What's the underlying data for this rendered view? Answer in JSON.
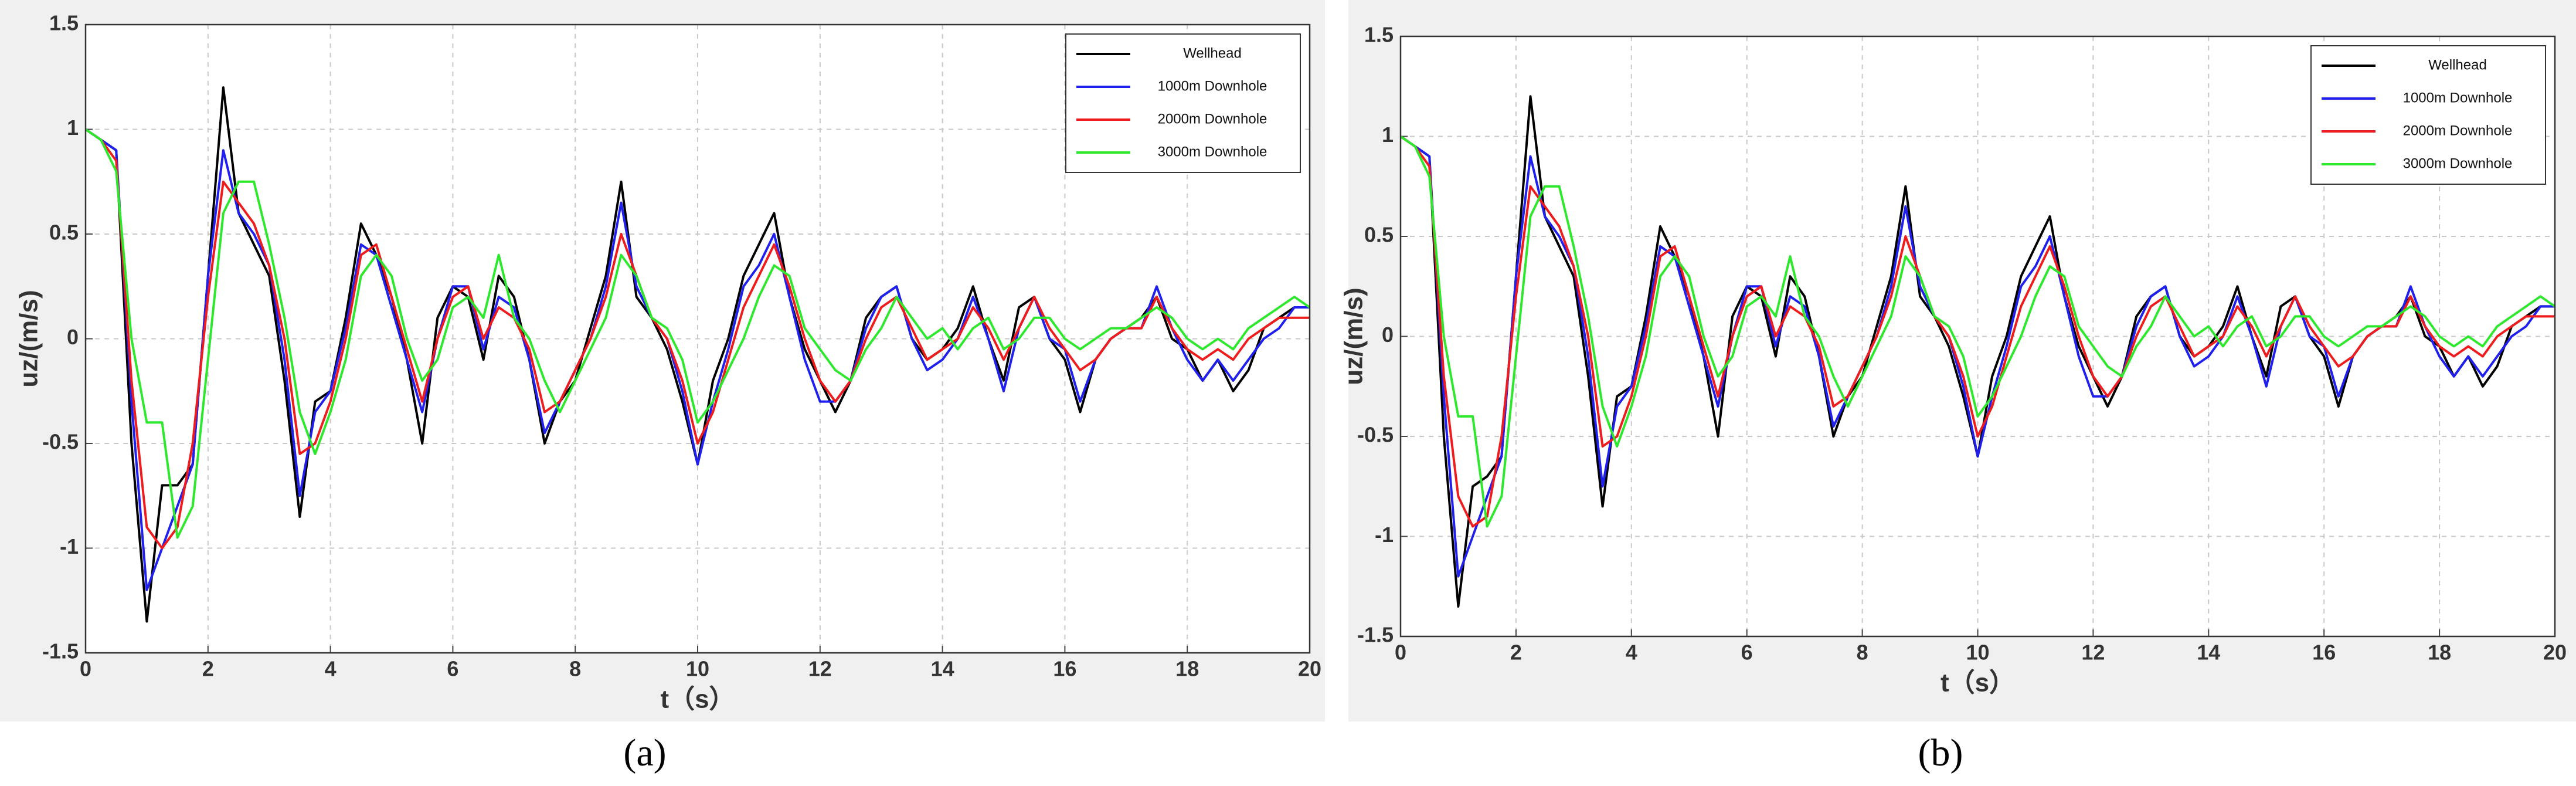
{
  "chart_data": [
    {
      "type": "line",
      "caption": "(a)",
      "xlabel": "t（s）",
      "ylabel": "uz/(m/s)",
      "xlim": [
        0,
        20
      ],
      "xticks": [
        0,
        2,
        4,
        6,
        8,
        10,
        12,
        14,
        16,
        18,
        20
      ],
      "ylim": [
        -1.5,
        1.5
      ],
      "yticks": [
        -1.5,
        -1,
        -0.5,
        0,
        0.5,
        1,
        1.5
      ],
      "grid": true,
      "legend": "upper right",
      "x": [
        0,
        0.25,
        0.5,
        0.75,
        1,
        1.25,
        1.5,
        1.75,
        2,
        2.25,
        2.5,
        2.75,
        3,
        3.25,
        3.5,
        3.75,
        4,
        4.25,
        4.5,
        4.75,
        5,
        5.25,
        5.5,
        5.75,
        6,
        6.25,
        6.5,
        6.75,
        7,
        7.25,
        7.5,
        7.75,
        8,
        8.25,
        8.5,
        8.75,
        9,
        9.25,
        9.5,
        9.75,
        10,
        10.25,
        10.5,
        10.75,
        11,
        11.25,
        11.5,
        11.75,
        12,
        12.25,
        12.5,
        12.75,
        13,
        13.25,
        13.5,
        13.75,
        14,
        14.25,
        14.5,
        14.75,
        15,
        15.25,
        15.5,
        15.75,
        16,
        16.25,
        16.5,
        16.75,
        17,
        17.25,
        17.5,
        17.75,
        18,
        18.25,
        18.5,
        18.75,
        19,
        19.25,
        19.5,
        19.75,
        20
      ],
      "series": [
        {
          "name": "Wellhead",
          "color": "#000000",
          "values": [
            1,
            0.95,
            0.9,
            -0.5,
            -1.35,
            -0.7,
            -0.7,
            -0.6,
            0.3,
            1.2,
            0.6,
            0.45,
            0.3,
            -0.2,
            -0.85,
            -0.3,
            -0.25,
            0.1,
            0.55,
            0.4,
            0.2,
            -0.1,
            -0.5,
            0.1,
            0.25,
            0.2,
            -0.1,
            0.3,
            0.2,
            -0.1,
            -0.5,
            -0.3,
            -0.2,
            0.05,
            0.3,
            0.75,
            0.2,
            0.1,
            -0.05,
            -0.3,
            -0.6,
            -0.2,
            0.0,
            0.3,
            0.45,
            0.6,
            0.2,
            -0.05,
            -0.2,
            -0.35,
            -0.2,
            0.1,
            0.2,
            0.25,
            0.0,
            -0.1,
            -0.05,
            0.05,
            0.25,
            0.0,
            -0.2,
            0.15,
            0.2,
            0.0,
            -0.1,
            -0.35,
            -0.1,
            0.0,
            0.05,
            0.1,
            0.2,
            0.0,
            -0.05,
            -0.2,
            -0.1,
            -0.25,
            -0.15,
            0.05,
            0.1,
            0.15,
            0.15
          ]
        },
        {
          "name": "1000m Downhole",
          "color": "#2020ee",
          "values": [
            1,
            0.95,
            0.9,
            -0.3,
            -1.2,
            -1.0,
            -0.8,
            -0.6,
            0.3,
            0.9,
            0.6,
            0.5,
            0.35,
            -0.1,
            -0.75,
            -0.35,
            -0.25,
            0.05,
            0.45,
            0.4,
            0.15,
            -0.1,
            -0.35,
            0.0,
            0.25,
            0.25,
            -0.05,
            0.2,
            0.15,
            -0.1,
            -0.45,
            -0.3,
            -0.15,
            0.0,
            0.25,
            0.65,
            0.25,
            0.1,
            0.0,
            -0.25,
            -0.6,
            -0.3,
            -0.05,
            0.25,
            0.35,
            0.5,
            0.2,
            -0.1,
            -0.3,
            -0.3,
            -0.2,
            0.05,
            0.2,
            0.25,
            0.0,
            -0.15,
            -0.1,
            0.0,
            0.2,
            0.0,
            -0.25,
            0.05,
            0.2,
            0.0,
            -0.05,
            -0.3,
            -0.1,
            0.0,
            0.05,
            0.05,
            0.25,
            0.05,
            -0.1,
            -0.2,
            -0.1,
            -0.2,
            -0.1,
            0.0,
            0.05,
            0.15,
            0.15
          ]
        },
        {
          "name": "2000m Downhole",
          "color": "#ee1c1c",
          "values": [
            1,
            0.95,
            0.85,
            -0.2,
            -0.9,
            -1.0,
            -0.9,
            -0.5,
            0.2,
            0.75,
            0.65,
            0.55,
            0.35,
            0.0,
            -0.55,
            -0.5,
            -0.3,
            0.0,
            0.4,
            0.45,
            0.2,
            -0.05,
            -0.3,
            0.0,
            0.2,
            0.25,
            0.0,
            0.15,
            0.1,
            -0.05,
            -0.35,
            -0.3,
            -0.15,
            0.0,
            0.2,
            0.5,
            0.3,
            0.1,
            0.0,
            -0.2,
            -0.5,
            -0.35,
            -0.1,
            0.15,
            0.3,
            0.45,
            0.25,
            0.0,
            -0.2,
            -0.3,
            -0.2,
            0.0,
            0.15,
            0.2,
            0.05,
            -0.1,
            -0.05,
            0.0,
            0.15,
            0.05,
            -0.1,
            0.05,
            0.2,
            0.05,
            -0.05,
            -0.15,
            -0.1,
            0.0,
            0.05,
            0.05,
            0.2,
            0.05,
            -0.05,
            -0.1,
            -0.05,
            -0.1,
            0.0,
            0.05,
            0.1,
            0.1,
            0.1
          ]
        },
        {
          "name": "3000m Downhole",
          "color": "#2ee82e",
          "values": [
            1,
            0.95,
            0.8,
            0.0,
            -0.4,
            -0.4,
            -0.95,
            -0.8,
            -0.1,
            0.6,
            0.75,
            0.75,
            0.45,
            0.1,
            -0.35,
            -0.55,
            -0.35,
            -0.1,
            0.3,
            0.4,
            0.3,
            0.0,
            -0.2,
            -0.1,
            0.15,
            0.2,
            0.1,
            0.4,
            0.1,
            0.0,
            -0.2,
            -0.35,
            -0.2,
            -0.05,
            0.1,
            0.4,
            0.3,
            0.1,
            0.05,
            -0.1,
            -0.4,
            -0.3,
            -0.15,
            0.0,
            0.2,
            0.35,
            0.3,
            0.05,
            -0.05,
            -0.15,
            -0.2,
            -0.05,
            0.05,
            0.2,
            0.1,
            0.0,
            0.05,
            -0.05,
            0.05,
            0.1,
            -0.05,
            0.0,
            0.1,
            0.1,
            0.0,
            -0.05,
            0.0,
            0.05,
            0.05,
            0.1,
            0.15,
            0.1,
            0.0,
            -0.05,
            0.0,
            -0.05,
            0.05,
            0.1,
            0.15,
            0.2,
            0.15
          ]
        }
      ]
    },
    {
      "type": "line",
      "caption": "(b)",
      "xlabel": "t（s）",
      "ylabel": "uz/(m/s)",
      "xlim": [
        0,
        20
      ],
      "xticks": [
        0,
        2,
        4,
        6,
        8,
        10,
        12,
        14,
        16,
        18,
        20
      ],
      "ylim": [
        -1.5,
        1.5
      ],
      "yticks": [
        -1.5,
        -1,
        -0.5,
        0,
        0.5,
        1,
        1.5
      ],
      "grid": true,
      "legend": "upper right",
      "x": [
        0,
        0.25,
        0.5,
        0.75,
        1,
        1.25,
        1.5,
        1.75,
        2,
        2.25,
        2.5,
        2.75,
        3,
        3.25,
        3.5,
        3.75,
        4,
        4.25,
        4.5,
        4.75,
        5,
        5.25,
        5.5,
        5.75,
        6,
        6.25,
        6.5,
        6.75,
        7,
        7.25,
        7.5,
        7.75,
        8,
        8.25,
        8.5,
        8.75,
        9,
        9.25,
        9.5,
        9.75,
        10,
        10.25,
        10.5,
        10.75,
        11,
        11.25,
        11.5,
        11.75,
        12,
        12.25,
        12.5,
        12.75,
        13,
        13.25,
        13.5,
        13.75,
        14,
        14.25,
        14.5,
        14.75,
        15,
        15.25,
        15.5,
        15.75,
        16,
        16.25,
        16.5,
        16.75,
        17,
        17.25,
        17.5,
        17.75,
        18,
        18.25,
        18.5,
        18.75,
        19,
        19.25,
        19.5,
        19.75,
        20
      ],
      "series": [
        {
          "name": "Wellhead",
          "color": "#000000",
          "values": [
            1,
            0.95,
            0.9,
            -0.5,
            -1.35,
            -0.75,
            -0.7,
            -0.6,
            0.3,
            1.2,
            0.6,
            0.45,
            0.3,
            -0.2,
            -0.85,
            -0.3,
            -0.25,
            0.1,
            0.55,
            0.4,
            0.2,
            -0.1,
            -0.5,
            0.1,
            0.25,
            0.2,
            -0.1,
            0.3,
            0.2,
            -0.1,
            -0.5,
            -0.3,
            -0.2,
            0.05,
            0.3,
            0.75,
            0.2,
            0.1,
            -0.05,
            -0.3,
            -0.6,
            -0.2,
            0.0,
            0.3,
            0.45,
            0.6,
            0.2,
            -0.05,
            -0.2,
            -0.35,
            -0.2,
            0.1,
            0.2,
            0.25,
            0.0,
            -0.1,
            -0.05,
            0.05,
            0.25,
            0.0,
            -0.2,
            0.15,
            0.2,
            0.0,
            -0.1,
            -0.35,
            -0.1,
            0.0,
            0.05,
            0.1,
            0.2,
            0.0,
            -0.05,
            -0.2,
            -0.1,
            -0.25,
            -0.15,
            0.05,
            0.1,
            0.15,
            0.15
          ]
        },
        {
          "name": "1000m Downhole",
          "color": "#2020ee",
          "values": [
            1,
            0.95,
            0.9,
            -0.3,
            -1.2,
            -1.0,
            -0.8,
            -0.6,
            0.3,
            0.9,
            0.6,
            0.5,
            0.35,
            -0.1,
            -0.75,
            -0.35,
            -0.25,
            0.05,
            0.45,
            0.4,
            0.15,
            -0.1,
            -0.35,
            0.0,
            0.25,
            0.25,
            -0.05,
            0.2,
            0.15,
            -0.1,
            -0.45,
            -0.3,
            -0.15,
            0.0,
            0.25,
            0.65,
            0.25,
            0.1,
            0.0,
            -0.25,
            -0.6,
            -0.3,
            -0.05,
            0.25,
            0.35,
            0.5,
            0.2,
            -0.1,
            -0.3,
            -0.3,
            -0.2,
            0.05,
            0.2,
            0.25,
            0.0,
            -0.15,
            -0.1,
            0.0,
            0.2,
            0.0,
            -0.25,
            0.05,
            0.2,
            0.0,
            -0.05,
            -0.3,
            -0.1,
            0.0,
            0.05,
            0.05,
            0.25,
            0.05,
            -0.1,
            -0.2,
            -0.1,
            -0.2,
            -0.1,
            0.0,
            0.05,
            0.15,
            0.15
          ]
        },
        {
          "name": "2000m Downhole",
          "color": "#ee1c1c",
          "values": [
            1,
            0.95,
            0.85,
            -0.2,
            -0.8,
            -0.95,
            -0.9,
            -0.5,
            0.2,
            0.75,
            0.65,
            0.55,
            0.35,
            0.0,
            -0.55,
            -0.5,
            -0.3,
            0.0,
            0.4,
            0.45,
            0.2,
            -0.05,
            -0.3,
            0.0,
            0.2,
            0.25,
            0.0,
            0.15,
            0.1,
            -0.05,
            -0.35,
            -0.3,
            -0.15,
            0.0,
            0.2,
            0.5,
            0.3,
            0.1,
            0.0,
            -0.2,
            -0.5,
            -0.35,
            -0.1,
            0.15,
            0.3,
            0.45,
            0.25,
            0.0,
            -0.2,
            -0.3,
            -0.2,
            0.0,
            0.15,
            0.2,
            0.05,
            -0.1,
            -0.05,
            0.0,
            0.15,
            0.05,
            -0.1,
            0.05,
            0.2,
            0.05,
            -0.05,
            -0.15,
            -0.1,
            0.0,
            0.05,
            0.05,
            0.2,
            0.05,
            -0.05,
            -0.1,
            -0.05,
            -0.1,
            0.0,
            0.05,
            0.1,
            0.1,
            0.1
          ]
        },
        {
          "name": "3000m Downhole",
          "color": "#2ee82e",
          "values": [
            1,
            0.95,
            0.8,
            0.0,
            -0.4,
            -0.4,
            -0.95,
            -0.8,
            -0.1,
            0.6,
            0.75,
            0.75,
            0.45,
            0.1,
            -0.35,
            -0.55,
            -0.35,
            -0.1,
            0.3,
            0.4,
            0.3,
            0.0,
            -0.2,
            -0.1,
            0.15,
            0.2,
            0.1,
            0.4,
            0.1,
            0.0,
            -0.2,
            -0.35,
            -0.2,
            -0.05,
            0.1,
            0.4,
            0.3,
            0.1,
            0.05,
            -0.1,
            -0.4,
            -0.3,
            -0.15,
            0.0,
            0.2,
            0.35,
            0.3,
            0.05,
            -0.05,
            -0.15,
            -0.2,
            -0.05,
            0.05,
            0.2,
            0.1,
            0.0,
            0.05,
            -0.05,
            0.05,
            0.1,
            -0.05,
            0.0,
            0.1,
            0.1,
            0.0,
            -0.05,
            0.0,
            0.05,
            0.05,
            0.1,
            0.15,
            0.1,
            0.0,
            -0.05,
            0.0,
            -0.05,
            0.05,
            0.1,
            0.15,
            0.2,
            0.15
          ]
        }
      ]
    }
  ]
}
